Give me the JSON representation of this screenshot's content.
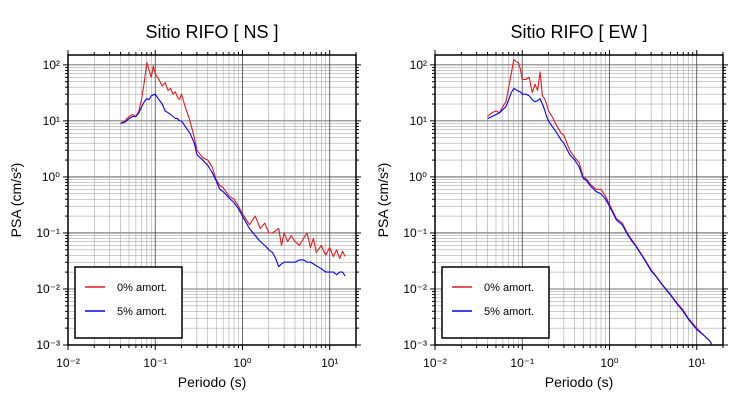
{
  "chart_data": [
    {
      "type": "line",
      "title": "Sitio RIFO [ NS ]",
      "xlabel": "Periodo (s)",
      "ylabel": "PSA (cm/s²)",
      "x_scale": "log",
      "y_scale": "log",
      "xlim": [
        0.01,
        20
      ],
      "ylim": [
        0.001,
        150
      ],
      "grid": true,
      "legend_position": "bottom-left",
      "x_tick_labels": [
        "10⁻²",
        "10⁻¹",
        "10⁰",
        "10¹"
      ],
      "y_tick_labels": [
        "10⁻³",
        "10⁻²",
        "10⁻¹",
        "10⁰",
        "10¹",
        "10²"
      ],
      "series": [
        {
          "name": "0% amort.",
          "color": "#e41a1c",
          "x": [
            0.04,
            0.045,
            0.05,
            0.055,
            0.06,
            0.065,
            0.07,
            0.075,
            0.08,
            0.085,
            0.09,
            0.095,
            0.1,
            0.11,
            0.12,
            0.13,
            0.14,
            0.15,
            0.16,
            0.17,
            0.18,
            0.19,
            0.2,
            0.22,
            0.25,
            0.28,
            0.3,
            0.35,
            0.4,
            0.45,
            0.5,
            0.55,
            0.6,
            0.7,
            0.8,
            0.9,
            1.0,
            1.2,
            1.4,
            1.6,
            1.8,
            2.0,
            2.2,
            2.4,
            2.6,
            2.8,
            3.0,
            3.3,
            3.6,
            4.0,
            4.5,
            5.0,
            5.5,
            6.0,
            6.5,
            7.0,
            8.0,
            9.0,
            10,
            11,
            12,
            13,
            14,
            15
          ],
          "y": [
            9.0,
            10.0,
            12.0,
            13.0,
            12.0,
            15.0,
            25.0,
            50.0,
            110.0,
            80.0,
            60.0,
            95.0,
            70.0,
            55.0,
            42.0,
            48.0,
            35.0,
            38.0,
            30.0,
            33.0,
            26.0,
            24.0,
            30.0,
            18.0,
            10.0,
            5.0,
            3.0,
            2.2,
            2.0,
            1.5,
            0.9,
            0.7,
            0.65,
            0.45,
            0.4,
            0.3,
            0.22,
            0.14,
            0.2,
            0.12,
            0.15,
            0.1,
            0.1,
            0.11,
            0.12,
            0.06,
            0.1,
            0.07,
            0.09,
            0.07,
            0.06,
            0.08,
            0.1,
            0.055,
            0.08,
            0.045,
            0.06,
            0.04,
            0.055,
            0.038,
            0.05,
            0.035,
            0.047,
            0.038
          ]
        },
        {
          "name": "5% amort.",
          "color": "#0000ff",
          "x": [
            0.04,
            0.045,
            0.05,
            0.055,
            0.06,
            0.065,
            0.07,
            0.075,
            0.08,
            0.085,
            0.09,
            0.095,
            0.1,
            0.11,
            0.12,
            0.13,
            0.14,
            0.15,
            0.16,
            0.17,
            0.18,
            0.19,
            0.2,
            0.22,
            0.25,
            0.28,
            0.3,
            0.35,
            0.4,
            0.45,
            0.5,
            0.55,
            0.6,
            0.7,
            0.8,
            0.9,
            1.0,
            1.2,
            1.4,
            1.6,
            1.8,
            2.0,
            2.2,
            2.4,
            2.6,
            2.8,
            3.0,
            3.3,
            3.6,
            4.0,
            4.5,
            5.0,
            5.5,
            6.0,
            6.5,
            7.0,
            8.0,
            9.0,
            10,
            11,
            12,
            13,
            14,
            15
          ],
          "y": [
            9.0,
            9.5,
            11.0,
            12.0,
            12.0,
            14.0,
            18.0,
            22.0,
            25.0,
            24.0,
            28.0,
            29.0,
            30.0,
            24.0,
            20.0,
            15.0,
            14.0,
            13.0,
            12.0,
            11.0,
            11.0,
            10.0,
            10.0,
            8.0,
            6.0,
            4.0,
            2.5,
            2.0,
            1.6,
            1.2,
            0.85,
            0.6,
            0.55,
            0.42,
            0.35,
            0.27,
            0.2,
            0.12,
            0.09,
            0.07,
            0.06,
            0.05,
            0.045,
            0.035,
            0.025,
            0.028,
            0.03,
            0.03,
            0.03,
            0.03,
            0.033,
            0.033,
            0.03,
            0.03,
            0.028,
            0.026,
            0.023,
            0.02,
            0.02,
            0.02,
            0.018,
            0.02,
            0.02,
            0.017
          ]
        }
      ]
    },
    {
      "type": "line",
      "title": "Sitio RIFO [ EW ]",
      "xlabel": "Periodo (s)",
      "ylabel": "PSA (cm/s²)",
      "x_scale": "log",
      "y_scale": "log",
      "xlim": [
        0.01,
        20
      ],
      "ylim": [
        0.001,
        150
      ],
      "grid": true,
      "legend_position": "bottom-left",
      "x_tick_labels": [
        "10⁻²",
        "10⁻¹",
        "10⁰",
        "10¹"
      ],
      "y_tick_labels": [
        "10⁻³",
        "10⁻²",
        "10⁻¹",
        "10⁰",
        "10¹",
        "10²"
      ],
      "series": [
        {
          "name": "0% amort.",
          "color": "#e41a1c",
          "x": [
            0.04,
            0.045,
            0.05,
            0.055,
            0.06,
            0.065,
            0.07,
            0.075,
            0.08,
            0.085,
            0.09,
            0.095,
            0.1,
            0.11,
            0.12,
            0.13,
            0.14,
            0.15,
            0.16,
            0.17,
            0.18,
            0.19,
            0.2,
            0.22,
            0.25,
            0.28,
            0.3,
            0.35,
            0.4,
            0.45,
            0.5,
            0.55,
            0.6,
            0.7,
            0.8,
            0.9,
            1.0,
            1.2,
            1.4,
            1.6,
            1.8,
            2.0,
            2.5,
            3.0,
            3.5,
            4.0,
            5.0,
            6.0,
            7.0,
            8.0,
            10,
            12,
            14,
            15
          ],
          "y": [
            12.0,
            14.0,
            15.0,
            14.0,
            18.0,
            22.0,
            40.0,
            70.0,
            125.0,
            115.0,
            110.0,
            85.0,
            55.0,
            55.0,
            60.0,
            32.0,
            45.0,
            35.0,
            75.0,
            28.0,
            25.0,
            20.0,
            15.0,
            12.0,
            8.0,
            6.0,
            5.5,
            3.0,
            2.2,
            1.8,
            1.0,
            0.9,
            0.75,
            0.6,
            0.6,
            0.45,
            0.32,
            0.18,
            0.15,
            0.1,
            0.075,
            0.06,
            0.035,
            0.022,
            0.016,
            0.012,
            0.008,
            0.0055,
            0.0042,
            0.003,
            0.002,
            0.0015,
            0.0012,
            0.001
          ]
        },
        {
          "name": "5% amort.",
          "color": "#0000ff",
          "x": [
            0.04,
            0.045,
            0.05,
            0.055,
            0.06,
            0.065,
            0.07,
            0.075,
            0.08,
            0.085,
            0.09,
            0.095,
            0.1,
            0.11,
            0.12,
            0.13,
            0.14,
            0.15,
            0.16,
            0.17,
            0.18,
            0.19,
            0.2,
            0.22,
            0.25,
            0.28,
            0.3,
            0.35,
            0.4,
            0.45,
            0.5,
            0.55,
            0.6,
            0.7,
            0.8,
            0.9,
            1.0,
            1.2,
            1.4,
            1.6,
            1.8,
            2.0,
            2.5,
            3.0,
            3.5,
            4.0,
            5.0,
            6.0,
            7.0,
            8.0,
            10,
            12,
            14,
            15
          ],
          "y": [
            11.0,
            12.0,
            13.0,
            14.0,
            16.0,
            18.0,
            24.0,
            32.0,
            38.0,
            36.0,
            34.0,
            33.0,
            30.0,
            30.0,
            28.0,
            24.0,
            22.0,
            23.0,
            25.0,
            20.0,
            16.0,
            12.0,
            10.0,
            8.0,
            6.0,
            4.5,
            4.0,
            2.5,
            2.0,
            1.5,
            0.95,
            0.85,
            0.7,
            0.55,
            0.5,
            0.4,
            0.3,
            0.17,
            0.14,
            0.095,
            0.072,
            0.058,
            0.034,
            0.021,
            0.016,
            0.012,
            0.0078,
            0.0053,
            0.004,
            0.0029,
            0.0019,
            0.0015,
            0.0012,
            0.001
          ]
        }
      ]
    }
  ]
}
